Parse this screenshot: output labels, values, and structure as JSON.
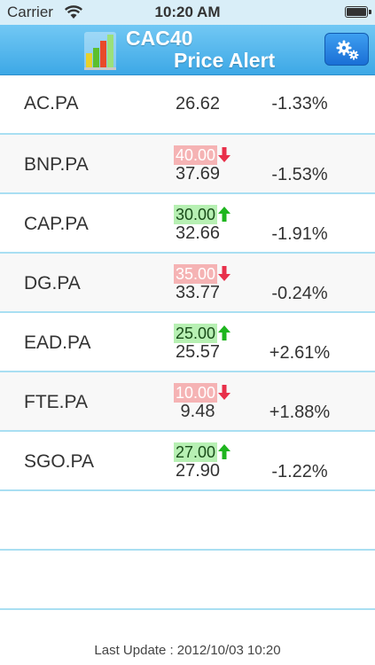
{
  "status": {
    "carrier": "Carrier",
    "time": "10:20 AM"
  },
  "header": {
    "title_line1": "CAC40",
    "title_line2": "Price Alert",
    "settings_icon": "gear-icon",
    "logo_icon": "bar-chart-icon"
  },
  "stocks": [
    {
      "symbol": "AC.PA",
      "price": "26.62",
      "change": "-1.33%",
      "alert": null
    },
    {
      "symbol": "BNP.PA",
      "price": "37.69",
      "change": "-1.53%",
      "alert": {
        "value": "40.00",
        "direction": "down"
      }
    },
    {
      "symbol": "CAP.PA",
      "price": "32.66",
      "change": "-1.91%",
      "alert": {
        "value": "30.00",
        "direction": "up"
      }
    },
    {
      "symbol": "DG.PA",
      "price": "33.77",
      "change": "-0.24%",
      "alert": {
        "value": "35.00",
        "direction": "down"
      }
    },
    {
      "symbol": "EAD.PA",
      "price": "25.57",
      "change": "+2.61%",
      "alert": {
        "value": "25.00",
        "direction": "up"
      }
    },
    {
      "symbol": "FTE.PA",
      "price": "9.48",
      "change": "+1.88%",
      "alert": {
        "value": "10.00",
        "direction": "down"
      }
    },
    {
      "symbol": "SGO.PA",
      "price": "27.90",
      "change": "-1.22%",
      "alert": {
        "value": "27.00",
        "direction": "up"
      }
    }
  ],
  "footer": {
    "last_update": "Last Update : 2012/10/03  10:20"
  },
  "colors": {
    "header_top": "#72c8f4",
    "header_bottom": "#3da8e6",
    "alert_down_bg": "#f5b3b4",
    "alert_up_bg": "#b7f0b3",
    "arrow_down": "#e8304a",
    "arrow_up": "#1fb51f",
    "row_divider": "#a9dff2"
  }
}
